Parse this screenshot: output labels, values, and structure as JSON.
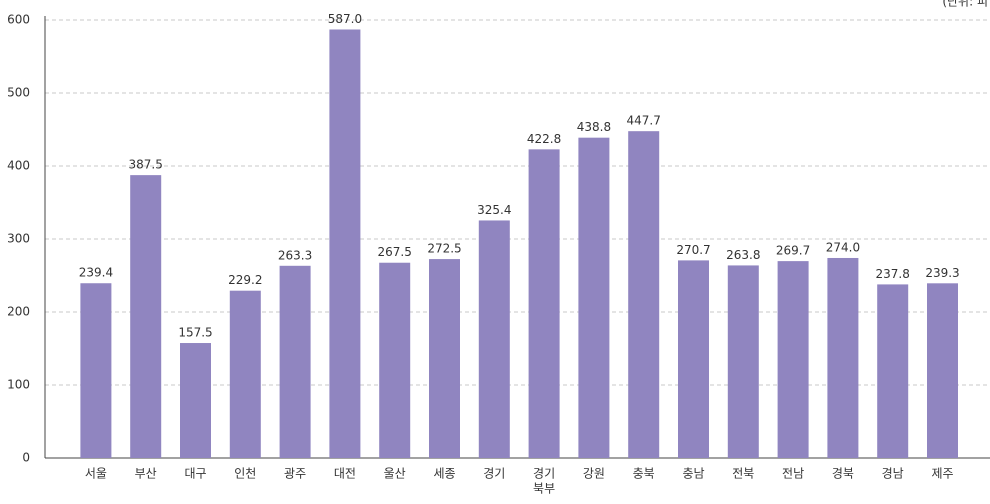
{
  "chart_data": {
    "type": "bar",
    "unit_note": "(단위: 피",
    "categories": [
      "서울",
      "부산",
      "대구",
      "인천",
      "광주",
      "대전",
      "울산",
      "세종",
      "경기",
      [
        "경기",
        "북부"
      ],
      "강원",
      "충북",
      "충남",
      "전북",
      "전남",
      "경북",
      "경남",
      "제주"
    ],
    "values": [
      239.4,
      387.5,
      157.5,
      229.2,
      263.3,
      587.0,
      267.5,
      272.5,
      325.4,
      422.8,
      438.8,
      447.7,
      270.7,
      263.8,
      269.7,
      274.0,
      237.8,
      239.3
    ],
    "value_labels": [
      "239.4",
      "387.5",
      "157.5",
      "229.2",
      "263.3",
      "587.0",
      "267.5",
      "272.5",
      "325.4",
      "422.8",
      "438.8",
      "447.7",
      "270.7",
      "263.8",
      "269.7",
      "274.0",
      "237.8",
      "239.3"
    ],
    "color": "#9085c0",
    "ylim": [
      0,
      600
    ],
    "yticks": [
      0,
      100,
      200,
      300,
      400,
      500,
      600
    ],
    "grid": true
  }
}
